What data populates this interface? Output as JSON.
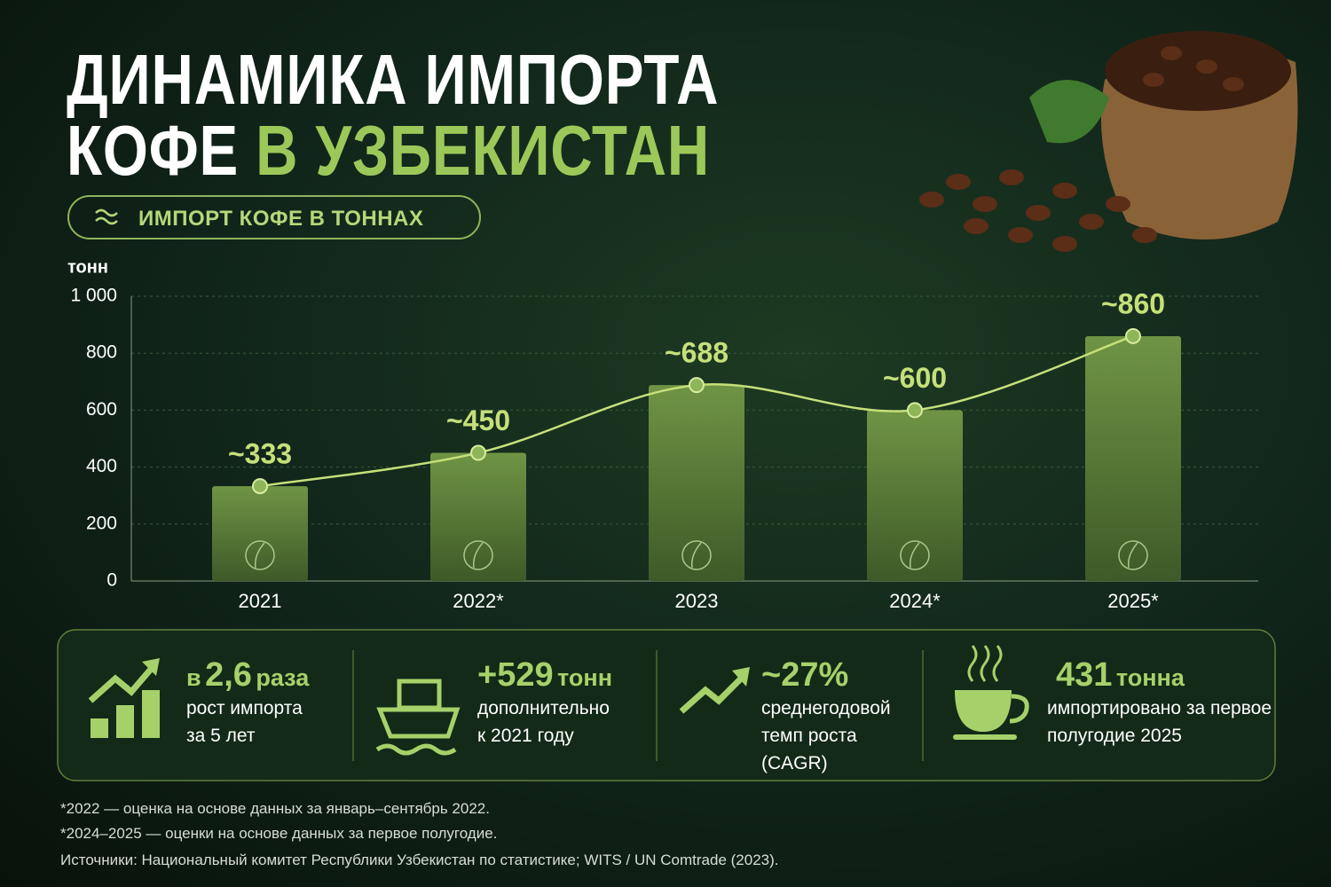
{
  "header": {
    "title_line1": "ДИНАМИКА ИМПОРТА",
    "title_line2_white": "КОФЕ",
    "title_line2_green": "В УЗБЕКИСТАН",
    "pill": "ИМПОРТ КОФЕ В ТОННАХ"
  },
  "chart_data": {
    "type": "bar",
    "y_label": "тонн",
    "categories": [
      "2021",
      "2022*",
      "2023",
      "2024*",
      "2025*"
    ],
    "values": [
      333,
      450,
      688,
      600,
      860
    ],
    "value_labels": [
      "~333",
      "~450",
      "~688",
      "~600",
      "~860"
    ],
    "color": "#5e7f3a",
    "line_color": "#c5e07a",
    "ylim": [
      0,
      1000
    ],
    "yticks": [
      0,
      200,
      400,
      600,
      800,
      {
        "value": 1000,
        "label": "1 000"
      }
    ],
    "grid": true
  },
  "stats": [
    {
      "prefix": "в",
      "value": "2,6",
      "unit": "раза",
      "lines": [
        "рост импорта",
        "за 5 лет"
      ]
    },
    {
      "value": "+529",
      "unit": "тонн",
      "lines": [
        "дополнительно",
        "к 2021 году"
      ]
    },
    {
      "value": "~27%",
      "lines": [
        "среднегодовой",
        "темп роста",
        "(CAGR)"
      ]
    },
    {
      "value": "431",
      "unit": "тонна",
      "lines": [
        "импортировано за первое",
        "полугодие 2025"
      ]
    }
  ],
  "footnotes": [
    "*2022 — оценка на основе данных за январь–сентябрь 2022.",
    "*2024–2025 — оценки на основе данных за первое полугодие.",
    "Источники: Национальный комитет Республики Узбекистан по статистике; WITS / UN Comtrade (2023)."
  ]
}
